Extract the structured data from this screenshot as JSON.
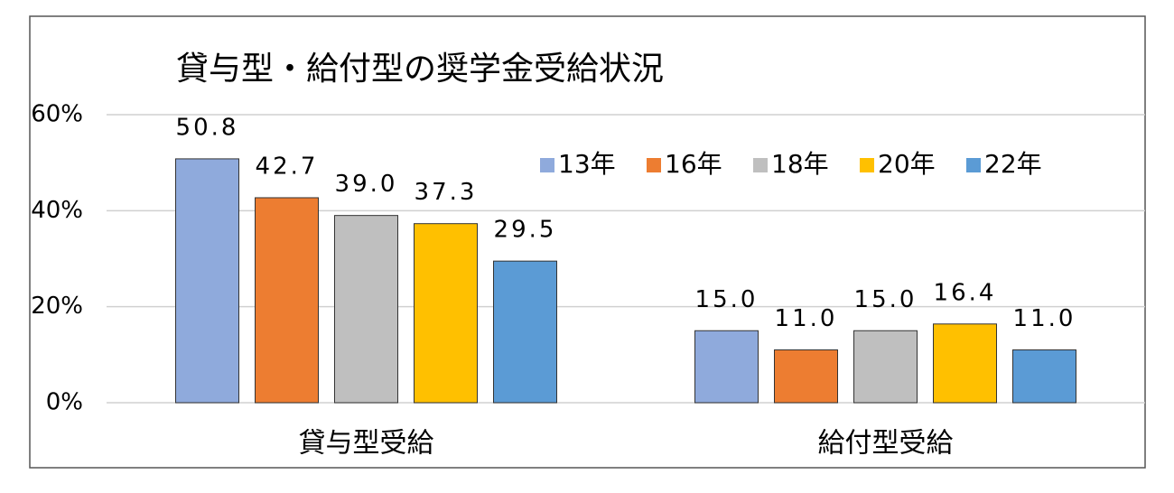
{
  "chart_data": {
    "type": "bar",
    "title": "貸与型・給付型の奨学金受給状況",
    "categories": [
      "貸与型受給",
      "給付型受給"
    ],
    "series": [
      {
        "name": "13年",
        "color": "#8faadc",
        "values": [
          50.8,
          15.0
        ],
        "value_labels": [
          "50.8",
          "15.0"
        ]
      },
      {
        "name": "16年",
        "color": "#ed7d31",
        "values": [
          42.7,
          11.0
        ],
        "value_labels": [
          "42.7",
          "11.0"
        ]
      },
      {
        "name": "18年",
        "color": "#bfbfbf",
        "values": [
          39.0,
          15.0
        ],
        "value_labels": [
          "39.0",
          "15.0"
        ]
      },
      {
        "name": "20年",
        "color": "#ffc000",
        "values": [
          37.3,
          16.4
        ],
        "value_labels": [
          "37.3",
          "16.4"
        ]
      },
      {
        "name": "22年",
        "color": "#5b9bd5",
        "values": [
          29.5,
          11.0
        ],
        "value_labels": [
          "29.5",
          "11.0"
        ]
      }
    ],
    "ylim": [
      0,
      60
    ],
    "yticks": [
      {
        "value": 0,
        "label": "0%"
      },
      {
        "value": 20,
        "label": "20%"
      },
      {
        "value": 40,
        "label": "40%"
      },
      {
        "value": 60,
        "label": "60%"
      }
    ],
    "grid": true,
    "legend": "top-right"
  }
}
